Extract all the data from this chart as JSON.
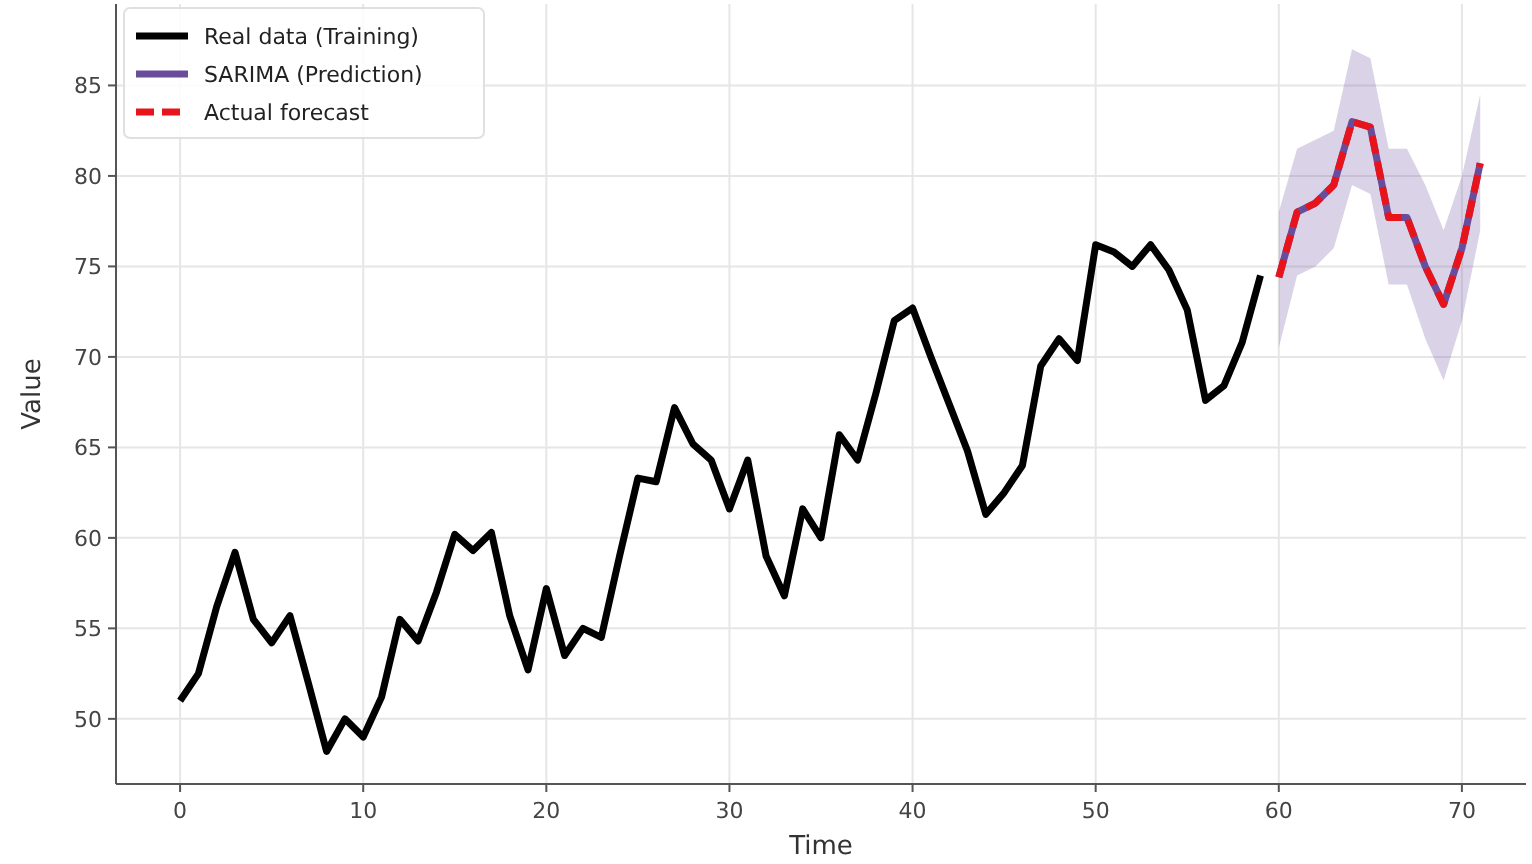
{
  "chart_data": {
    "type": "line",
    "xlabel": "Time",
    "ylabel": "Value",
    "xlim": [
      -3.5,
      73.5
    ],
    "ylim": [
      46.4,
      89.5
    ],
    "xticks": [
      0,
      10,
      20,
      30,
      40,
      50,
      60,
      70
    ],
    "yticks": [
      50,
      55,
      60,
      65,
      70,
      75,
      80,
      85
    ],
    "grid": true,
    "legend": "top left",
    "series": [
      {
        "name": "Real data (Training)",
        "color": "#000000",
        "line_style": "solid",
        "x": [
          0,
          1,
          2,
          3,
          4,
          5,
          6,
          7,
          8,
          9,
          10,
          11,
          12,
          13,
          14,
          15,
          16,
          17,
          18,
          19,
          20,
          21,
          22,
          23,
          24,
          25,
          26,
          27,
          28,
          29,
          30,
          31,
          32,
          33,
          34,
          35,
          36,
          37,
          38,
          39,
          40,
          41,
          42,
          43,
          44,
          45,
          46,
          47,
          48,
          49,
          50,
          51,
          52,
          53,
          54,
          55,
          56,
          57,
          58,
          59
        ],
        "values": [
          51,
          52.5,
          56.2,
          59.2,
          55.5,
          54.2,
          55.7,
          52,
          48.2,
          50,
          49,
          51.2,
          55.5,
          54.3,
          57,
          60.2,
          59.3,
          60.3,
          55.7,
          52.7,
          57.2,
          53.5,
          55,
          54.5,
          59,
          63.3,
          63.1,
          67.2,
          65.2,
          64.3,
          61.6,
          64.3,
          59,
          56.8,
          61.6,
          60,
          65.7,
          64.3,
          68,
          72,
          72.7,
          70,
          67.4,
          64.8,
          61.3,
          62.5,
          64,
          69.5,
          71,
          69.8,
          76.2,
          75.8,
          75,
          76.2,
          74.8,
          72.6,
          67.6,
          68.4,
          70.8,
          74.5
        ]
      },
      {
        "name": "SARIMA (Prediction)",
        "color": "#6a4c9c",
        "line_style": "solid",
        "x": [
          60,
          61,
          62,
          63,
          64,
          65,
          66,
          67,
          68,
          69,
          70,
          71
        ],
        "values": [
          74.4,
          78,
          78.5,
          79.5,
          83,
          82.7,
          77.7,
          77.7,
          75,
          72.9,
          76,
          80.7
        ],
        "lower": [
          70.5,
          74.5,
          75,
          76,
          79.5,
          79,
          74,
          74,
          71,
          68.7,
          72,
          77
        ],
        "upper": [
          78,
          81.5,
          82,
          82.5,
          87,
          86.5,
          81.5,
          81.5,
          79.5,
          77,
          80,
          84.5
        ]
      },
      {
        "name": "Actual forecast",
        "color": "#e8141c",
        "line_style": "dashed",
        "x": [
          60,
          61,
          62,
          63,
          64,
          65,
          66,
          67,
          68,
          69,
          70,
          71
        ],
        "values": [
          74.4,
          78,
          78.5,
          79.5,
          83,
          82.7,
          77.7,
          77.7,
          75,
          72.9,
          76,
          80.7
        ]
      }
    ]
  }
}
